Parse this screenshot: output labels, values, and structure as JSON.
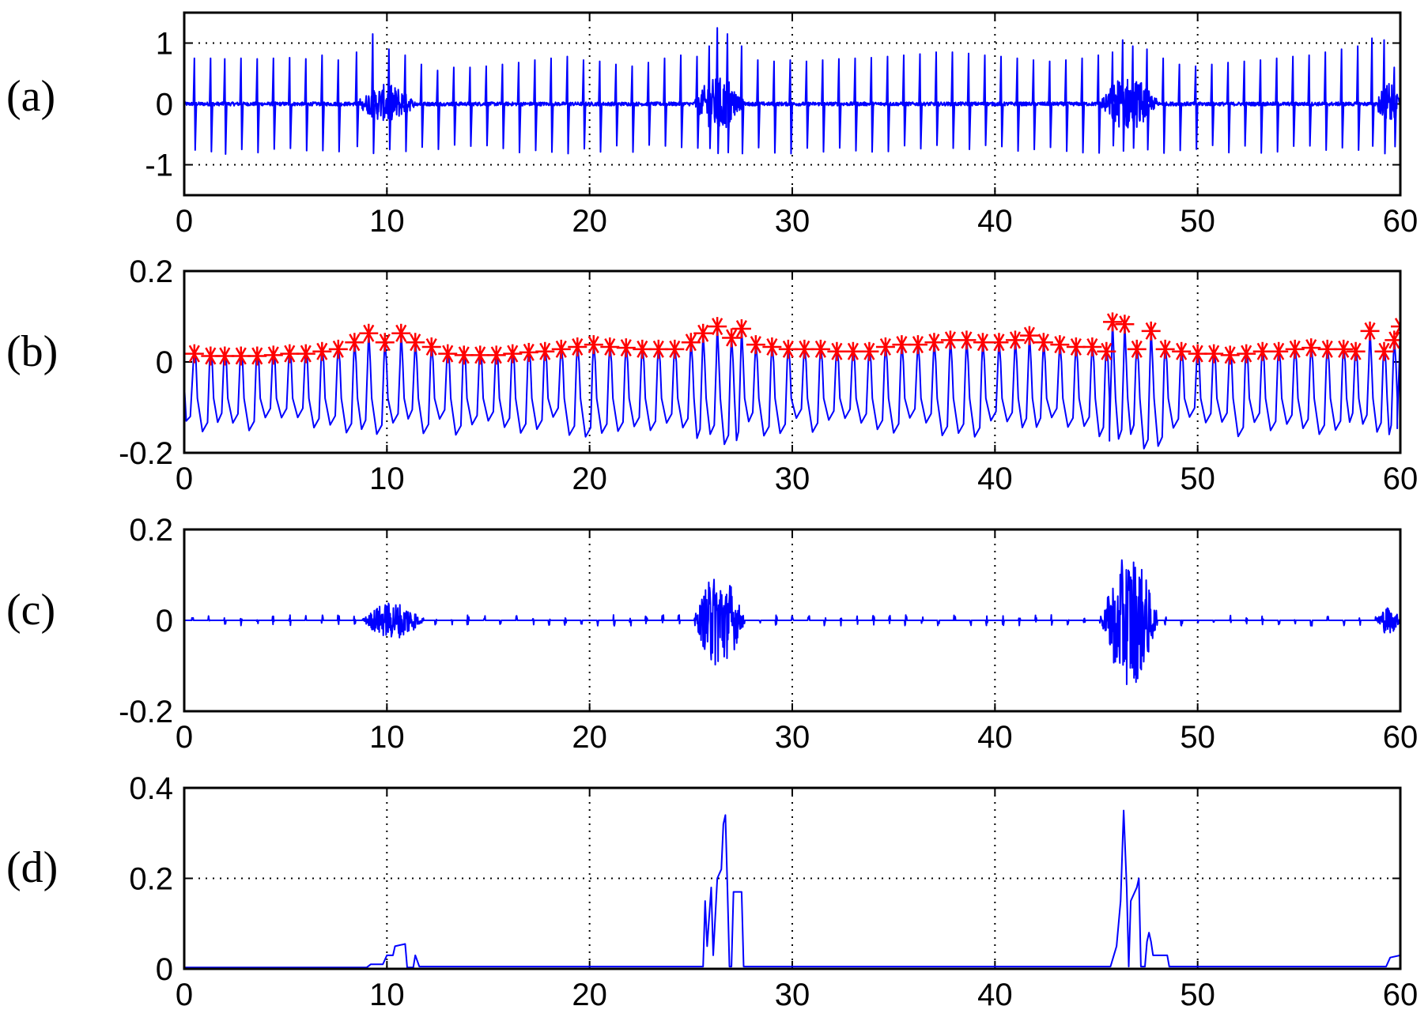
{
  "chart_data": [
    {
      "panel": "(a)",
      "type": "line",
      "xlim": [
        0,
        60
      ],
      "ylim": [
        -1.5,
        1.5
      ],
      "xticks": [
        0,
        10,
        20,
        30,
        40,
        50,
        60
      ],
      "yticks": [
        -1,
        0,
        1
      ],
      "grid_y": [
        -1,
        1
      ],
      "grid_x": [
        10,
        20,
        30,
        40,
        50
      ],
      "line_color": "#0000ff",
      "series": [
        {
          "kind": "spikes",
          "beat_interval": 0.78,
          "spikes_up": [
            {
              "x": 0.5,
              "y": 0.75
            },
            {
              "x": 1.3,
              "y": 0.75
            },
            {
              "x": 2.0,
              "y": 0.74
            },
            {
              "x": 2.8,
              "y": 0.75
            },
            {
              "x": 3.6,
              "y": 0.74
            },
            {
              "x": 4.4,
              "y": 0.75
            },
            {
              "x": 5.2,
              "y": 0.76
            },
            {
              "x": 6.0,
              "y": 0.74
            },
            {
              "x": 6.8,
              "y": 0.8
            },
            {
              "x": 7.6,
              "y": 0.72
            },
            {
              "x": 8.5,
              "y": 0.85
            },
            {
              "x": 9.3,
              "y": 1.15
            },
            {
              "x": 10.1,
              "y": 0.9
            },
            {
              "x": 10.9,
              "y": 0.8
            },
            {
              "x": 11.7,
              "y": 0.65
            },
            {
              "x": 12.5,
              "y": 0.55
            },
            {
              "x": 13.3,
              "y": 0.6
            },
            {
              "x": 14.1,
              "y": 0.6
            },
            {
              "x": 14.9,
              "y": 0.62
            },
            {
              "x": 15.7,
              "y": 0.65
            },
            {
              "x": 16.5,
              "y": 0.68
            },
            {
              "x": 17.3,
              "y": 0.72
            },
            {
              "x": 18.1,
              "y": 0.75
            },
            {
              "x": 18.9,
              "y": 0.78
            },
            {
              "x": 19.7,
              "y": 0.72
            },
            {
              "x": 20.5,
              "y": 0.7
            },
            {
              "x": 21.3,
              "y": 0.65
            },
            {
              "x": 22.1,
              "y": 0.62
            },
            {
              "x": 22.9,
              "y": 0.68
            },
            {
              "x": 23.7,
              "y": 0.75
            },
            {
              "x": 24.5,
              "y": 0.8
            },
            {
              "x": 25.3,
              "y": 0.78
            },
            {
              "x": 25.9,
              "y": 0.95
            },
            {
              "x": 26.3,
              "y": 1.25
            },
            {
              "x": 26.8,
              "y": 1.15
            },
            {
              "x": 27.5,
              "y": 0.95
            },
            {
              "x": 28.3,
              "y": 0.72
            },
            {
              "x": 29.1,
              "y": 0.7
            },
            {
              "x": 29.9,
              "y": 0.72
            },
            {
              "x": 30.7,
              "y": 0.7
            },
            {
              "x": 31.5,
              "y": 0.72
            },
            {
              "x": 32.3,
              "y": 0.74
            },
            {
              "x": 33.1,
              "y": 0.75
            },
            {
              "x": 33.9,
              "y": 0.76
            },
            {
              "x": 34.7,
              "y": 0.78
            },
            {
              "x": 35.5,
              "y": 0.8
            },
            {
              "x": 36.3,
              "y": 0.82
            },
            {
              "x": 37.1,
              "y": 0.85
            },
            {
              "x": 37.9,
              "y": 0.85
            },
            {
              "x": 38.7,
              "y": 0.83
            },
            {
              "x": 39.5,
              "y": 0.8
            },
            {
              "x": 40.3,
              "y": 0.78
            },
            {
              "x": 41.1,
              "y": 0.75
            },
            {
              "x": 41.9,
              "y": 0.72
            },
            {
              "x": 42.7,
              "y": 0.7
            },
            {
              "x": 43.5,
              "y": 0.72
            },
            {
              "x": 44.3,
              "y": 0.75
            },
            {
              "x": 45.1,
              "y": 0.8
            },
            {
              "x": 45.8,
              "y": 0.85
            },
            {
              "x": 46.3,
              "y": 1.05
            },
            {
              "x": 46.8,
              "y": 0.95
            },
            {
              "x": 47.5,
              "y": 0.9
            },
            {
              "x": 48.3,
              "y": 0.75
            },
            {
              "x": 49.1,
              "y": 0.65
            },
            {
              "x": 49.9,
              "y": 0.62
            },
            {
              "x": 50.7,
              "y": 0.65
            },
            {
              "x": 51.5,
              "y": 0.68
            },
            {
              "x": 52.3,
              "y": 0.7
            },
            {
              "x": 53.1,
              "y": 0.72
            },
            {
              "x": 53.9,
              "y": 0.75
            },
            {
              "x": 54.7,
              "y": 0.78
            },
            {
              "x": 55.5,
              "y": 0.8
            },
            {
              "x": 56.3,
              "y": 0.85
            },
            {
              "x": 57.1,
              "y": 0.9
            },
            {
              "x": 57.9,
              "y": 0.95
            },
            {
              "x": 58.6,
              "y": 1.08
            },
            {
              "x": 59.2,
              "y": 1.05
            },
            {
              "x": 59.7,
              "y": 0.6
            }
          ],
          "spike_low": -0.75,
          "noise_bursts": [
            {
              "x0": 8.6,
              "x1": 11.4,
              "amp": 0.3
            },
            {
              "x0": 25.2,
              "x1": 27.6,
              "amp": 0.45
            },
            {
              "x0": 45.2,
              "x1": 48.0,
              "amp": 0.45
            },
            {
              "x0": 58.8,
              "x1": 60.0,
              "amp": 0.35
            }
          ]
        }
      ]
    },
    {
      "panel": "(b)",
      "type": "line",
      "xlim": [
        0,
        60
      ],
      "ylim": [
        -0.2,
        0.2
      ],
      "xticks": [
        0,
        10,
        20,
        30,
        40,
        50,
        60
      ],
      "yticks": [
        -0.2,
        0,
        0.2
      ],
      "grid_y": [],
      "grid_x": [
        10,
        20,
        30,
        40,
        50
      ],
      "line_color": "#0000ff",
      "marker_color": "#ff0000",
      "series": [
        {
          "kind": "oscillation",
          "peaks": [
            {
              "x": 0.5,
              "y": 0.025
            },
            {
              "x": 1.3,
              "y": 0.02
            },
            {
              "x": 2.0,
              "y": 0.02
            },
            {
              "x": 2.8,
              "y": 0.02
            },
            {
              "x": 3.6,
              "y": 0.02
            },
            {
              "x": 4.4,
              "y": 0.022
            },
            {
              "x": 5.2,
              "y": 0.025
            },
            {
              "x": 6.0,
              "y": 0.025
            },
            {
              "x": 6.8,
              "y": 0.03
            },
            {
              "x": 7.6,
              "y": 0.035
            },
            {
              "x": 8.4,
              "y": 0.05
            },
            {
              "x": 9.1,
              "y": 0.07
            },
            {
              "x": 9.9,
              "y": 0.05
            },
            {
              "x": 10.7,
              "y": 0.07
            },
            {
              "x": 11.4,
              "y": 0.05
            },
            {
              "x": 12.2,
              "y": 0.04
            },
            {
              "x": 13.0,
              "y": 0.025
            },
            {
              "x": 13.8,
              "y": 0.022
            },
            {
              "x": 14.6,
              "y": 0.022
            },
            {
              "x": 15.4,
              "y": 0.022
            },
            {
              "x": 16.2,
              "y": 0.025
            },
            {
              "x": 17.0,
              "y": 0.028
            },
            {
              "x": 17.8,
              "y": 0.03
            },
            {
              "x": 18.6,
              "y": 0.035
            },
            {
              "x": 19.4,
              "y": 0.04
            },
            {
              "x": 20.2,
              "y": 0.045
            },
            {
              "x": 21.0,
              "y": 0.04
            },
            {
              "x": 21.8,
              "y": 0.038
            },
            {
              "x": 22.6,
              "y": 0.035
            },
            {
              "x": 23.4,
              "y": 0.035
            },
            {
              "x": 24.2,
              "y": 0.035
            },
            {
              "x": 25.0,
              "y": 0.05
            },
            {
              "x": 25.6,
              "y": 0.07
            },
            {
              "x": 26.3,
              "y": 0.085
            },
            {
              "x": 27.0,
              "y": 0.06
            },
            {
              "x": 27.5,
              "y": 0.08
            },
            {
              "x": 28.2,
              "y": 0.045
            },
            {
              "x": 29.0,
              "y": 0.04
            },
            {
              "x": 29.8,
              "y": 0.035
            },
            {
              "x": 30.6,
              "y": 0.035
            },
            {
              "x": 31.4,
              "y": 0.035
            },
            {
              "x": 32.2,
              "y": 0.03
            },
            {
              "x": 33.0,
              "y": 0.03
            },
            {
              "x": 33.8,
              "y": 0.03
            },
            {
              "x": 34.6,
              "y": 0.04
            },
            {
              "x": 35.4,
              "y": 0.045
            },
            {
              "x": 36.2,
              "y": 0.045
            },
            {
              "x": 37.0,
              "y": 0.05
            },
            {
              "x": 37.8,
              "y": 0.055
            },
            {
              "x": 38.6,
              "y": 0.055
            },
            {
              "x": 39.4,
              "y": 0.05
            },
            {
              "x": 40.2,
              "y": 0.05
            },
            {
              "x": 41.0,
              "y": 0.055
            },
            {
              "x": 41.7,
              "y": 0.065
            },
            {
              "x": 42.4,
              "y": 0.05
            },
            {
              "x": 43.2,
              "y": 0.045
            },
            {
              "x": 44.0,
              "y": 0.04
            },
            {
              "x": 44.8,
              "y": 0.04
            },
            {
              "x": 45.5,
              "y": 0.03
            },
            {
              "x": 45.8,
              "y": 0.095
            },
            {
              "x": 46.4,
              "y": 0.09
            },
            {
              "x": 47.0,
              "y": 0.035
            },
            {
              "x": 47.7,
              "y": 0.075
            },
            {
              "x": 48.4,
              "y": 0.035
            },
            {
              "x": 49.2,
              "y": 0.03
            },
            {
              "x": 50.0,
              "y": 0.025
            },
            {
              "x": 50.8,
              "y": 0.025
            },
            {
              "x": 51.6,
              "y": 0.022
            },
            {
              "x": 52.4,
              "y": 0.025
            },
            {
              "x": 53.2,
              "y": 0.03
            },
            {
              "x": 54.0,
              "y": 0.03
            },
            {
              "x": 54.8,
              "y": 0.035
            },
            {
              "x": 55.6,
              "y": 0.038
            },
            {
              "x": 56.4,
              "y": 0.035
            },
            {
              "x": 57.2,
              "y": 0.035
            },
            {
              "x": 57.8,
              "y": 0.03
            },
            {
              "x": 58.5,
              "y": 0.075
            },
            {
              "x": 59.2,
              "y": 0.03
            },
            {
              "x": 59.7,
              "y": 0.055
            },
            {
              "x": 60.0,
              "y": 0.085
            }
          ],
          "troughs": [
            -0.12,
            -0.175,
            -0.2,
            -0.18,
            -0.15
          ]
        }
      ]
    },
    {
      "panel": "(c)",
      "type": "line",
      "xlim": [
        0,
        60
      ],
      "ylim": [
        -0.2,
        0.2
      ],
      "xticks": [
        0,
        10,
        20,
        30,
        40,
        50,
        60
      ],
      "yticks": [
        -0.2,
        0,
        0.2
      ],
      "grid_y": [],
      "grid_x": [
        10,
        20,
        30,
        40,
        50
      ],
      "line_color": "#0000ff",
      "series": [
        {
          "kind": "bursts",
          "bursts": [
            {
              "x0": 8.8,
              "x1": 11.8,
              "amp": 0.04
            },
            {
              "x0": 25.2,
              "x1": 27.6,
              "amp": 0.105
            },
            {
              "x0": 45.3,
              "x1": 48.0,
              "amp": 0.145
            },
            {
              "x0": 58.8,
              "x1": 60.0,
              "amp": 0.03
            }
          ],
          "blip_amp": 0.012
        }
      ]
    },
    {
      "panel": "(d)",
      "type": "line",
      "xlim": [
        0,
        60
      ],
      "ylim": [
        0,
        0.4
      ],
      "xticks": [
        0,
        10,
        20,
        30,
        40,
        50,
        60
      ],
      "yticks": [
        0,
        0.2,
        0.4
      ],
      "grid_y": [
        0.2
      ],
      "grid_x": [
        10,
        20,
        30,
        40,
        50
      ],
      "line_color": "#0000ff",
      "series": [
        {
          "kind": "steps",
          "points": [
            [
              0,
              0.003
            ],
            [
              9.0,
              0.003
            ],
            [
              9.2,
              0.01
            ],
            [
              9.8,
              0.01
            ],
            [
              10.0,
              0.03
            ],
            [
              10.3,
              0.03
            ],
            [
              10.4,
              0.05
            ],
            [
              10.9,
              0.055
            ],
            [
              11.0,
              0.003
            ],
            [
              11.3,
              0.003
            ],
            [
              11.4,
              0.03
            ],
            [
              11.6,
              0.005
            ],
            [
              25.6,
              0.005
            ],
            [
              25.7,
              0.15
            ],
            [
              25.8,
              0.05
            ],
            [
              26.0,
              0.18
            ],
            [
              26.1,
              0.03
            ],
            [
              26.3,
              0.2
            ],
            [
              26.5,
              0.22
            ],
            [
              26.6,
              0.32
            ],
            [
              26.7,
              0.34
            ],
            [
              26.8,
              0.18
            ],
            [
              26.9,
              0.005
            ],
            [
              27.0,
              0.005
            ],
            [
              27.1,
              0.17
            ],
            [
              27.5,
              0.17
            ],
            [
              27.6,
              0.005
            ],
            [
              45.7,
              0.005
            ],
            [
              45.8,
              0.02
            ],
            [
              46.0,
              0.05
            ],
            [
              46.2,
              0.15
            ],
            [
              46.35,
              0.35
            ],
            [
              46.5,
              0.18
            ],
            [
              46.6,
              0.005
            ],
            [
              46.7,
              0.15
            ],
            [
              47.0,
              0.18
            ],
            [
              47.1,
              0.2
            ],
            [
              47.2,
              0.005
            ],
            [
              47.4,
              0.005
            ],
            [
              47.5,
              0.06
            ],
            [
              47.6,
              0.08
            ],
            [
              47.7,
              0.06
            ],
            [
              47.8,
              0.03
            ],
            [
              48.5,
              0.03
            ],
            [
              48.6,
              0.005
            ],
            [
              59.3,
              0.005
            ],
            [
              59.5,
              0.025
            ],
            [
              60.0,
              0.03
            ]
          ]
        }
      ]
    }
  ]
}
